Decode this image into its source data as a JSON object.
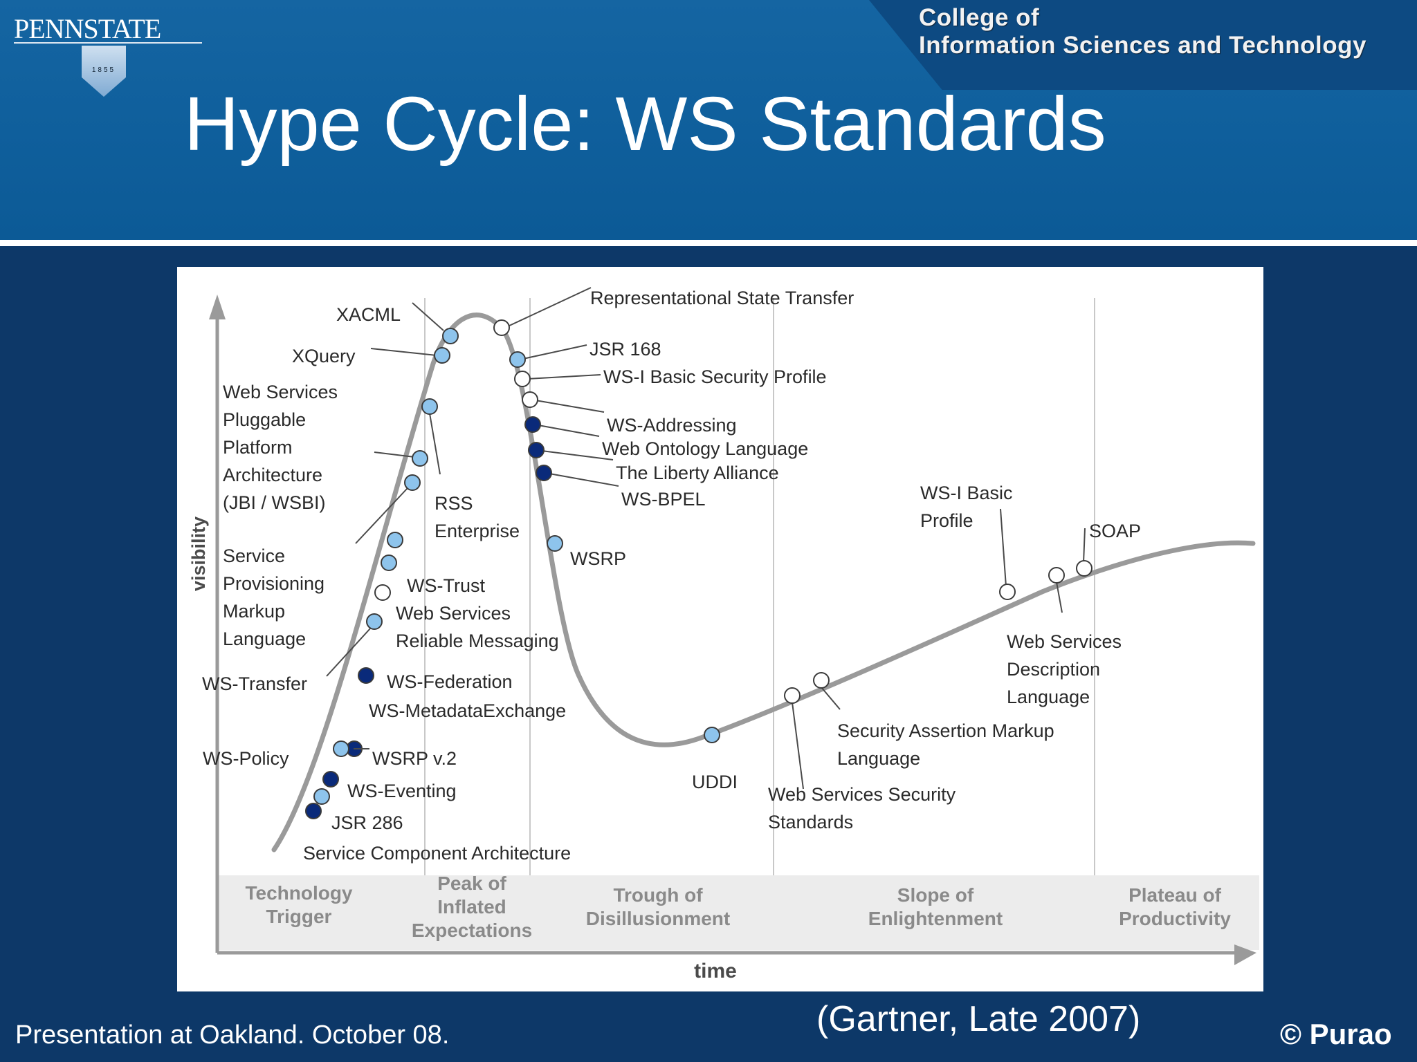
{
  "header": {
    "logo_text": "PENNSTATE",
    "logo_year": "1855",
    "college_line1": "College of",
    "college_line2": "Information Sciences and Technology",
    "title": "Hype Cycle: WS Standards"
  },
  "diagram": {
    "y_axis_label": "visibility",
    "x_axis_label": "time",
    "phases": [
      {
        "lines": [
          "Technology",
          "Trigger"
        ]
      },
      {
        "lines": [
          "Peak of",
          "Inflated",
          "Expectations"
        ]
      },
      {
        "lines": [
          "Trough of",
          "Disillusionment"
        ]
      },
      {
        "lines": [
          "Slope of",
          "Enlightenment"
        ]
      },
      {
        "lines": [
          "Plateau of",
          "Productivity"
        ]
      }
    ],
    "marker_legend_colors": {
      "dark": "#0a2a7a",
      "light": "#8ec4ec",
      "white": "#ffffff"
    },
    "technologies": [
      {
        "lines": [
          "XACML"
        ],
        "marker": "light"
      },
      {
        "lines": [
          "XQuery"
        ],
        "marker": "light"
      },
      {
        "lines": [
          "Web Services",
          "Pluggable",
          "Platform",
          "Architecture",
          "(JBI / WSBI)"
        ],
        "marker": "light"
      },
      {
        "lines": [
          "RSS",
          "Enterprise"
        ],
        "marker": "light"
      },
      {
        "lines": [
          "Service",
          "Provisioning",
          "Markup",
          "Language"
        ],
        "marker": "light"
      },
      {
        "lines": [
          "WS-Trust"
        ],
        "marker": "light"
      },
      {
        "lines": [
          "Web Services",
          "Reliable Messaging"
        ],
        "marker": "white"
      },
      {
        "lines": [
          "WS-Transfer"
        ],
        "marker": "light"
      },
      {
        "lines": [
          "WS-Federation"
        ],
        "marker": "dark"
      },
      {
        "lines": [
          "WS-MetadataExchange"
        ],
        "marker": "light"
      },
      {
        "lines": [
          "WS-Policy"
        ],
        "marker": "dark"
      },
      {
        "lines": [
          "WSRP v.2"
        ],
        "marker": "light"
      },
      {
        "lines": [
          "WS-Eventing"
        ],
        "marker": "dark"
      },
      {
        "lines": [
          "JSR 286"
        ],
        "marker": "light"
      },
      {
        "lines": [
          "Service Component Architecture"
        ],
        "marker": "dark"
      },
      {
        "lines": [
          "Representational State Transfer"
        ],
        "marker": "white"
      },
      {
        "lines": [
          "JSR 168"
        ],
        "marker": "light"
      },
      {
        "lines": [
          "WS-I Basic Security Profile"
        ],
        "marker": "white"
      },
      {
        "lines": [
          "WS-Addressing"
        ],
        "marker": "white"
      },
      {
        "lines": [
          "Web Ontology Language"
        ],
        "marker": "dark"
      },
      {
        "lines": [
          "The Liberty Alliance"
        ],
        "marker": "dark"
      },
      {
        "lines": [
          "WS-BPEL"
        ],
        "marker": "dark"
      },
      {
        "lines": [
          "WSRP"
        ],
        "marker": "light"
      },
      {
        "lines": [
          "UDDI"
        ],
        "marker": "light"
      },
      {
        "lines": [
          "Web Services Security",
          "Standards"
        ],
        "marker": "white"
      },
      {
        "lines": [
          "Security Assertion Markup",
          "Language"
        ],
        "marker": "white"
      },
      {
        "lines": [
          "WS-I Basic",
          "Profile"
        ],
        "marker": "white"
      },
      {
        "lines": [
          "Web Services",
          "Description",
          "Language"
        ],
        "marker": "white"
      },
      {
        "lines": [
          "SOAP"
        ],
        "marker": "white"
      }
    ]
  },
  "caption": "(Gartner, Late 2007)",
  "footer": {
    "left": "Presentation at Oakland. October 08.",
    "right": "© Purao"
  }
}
